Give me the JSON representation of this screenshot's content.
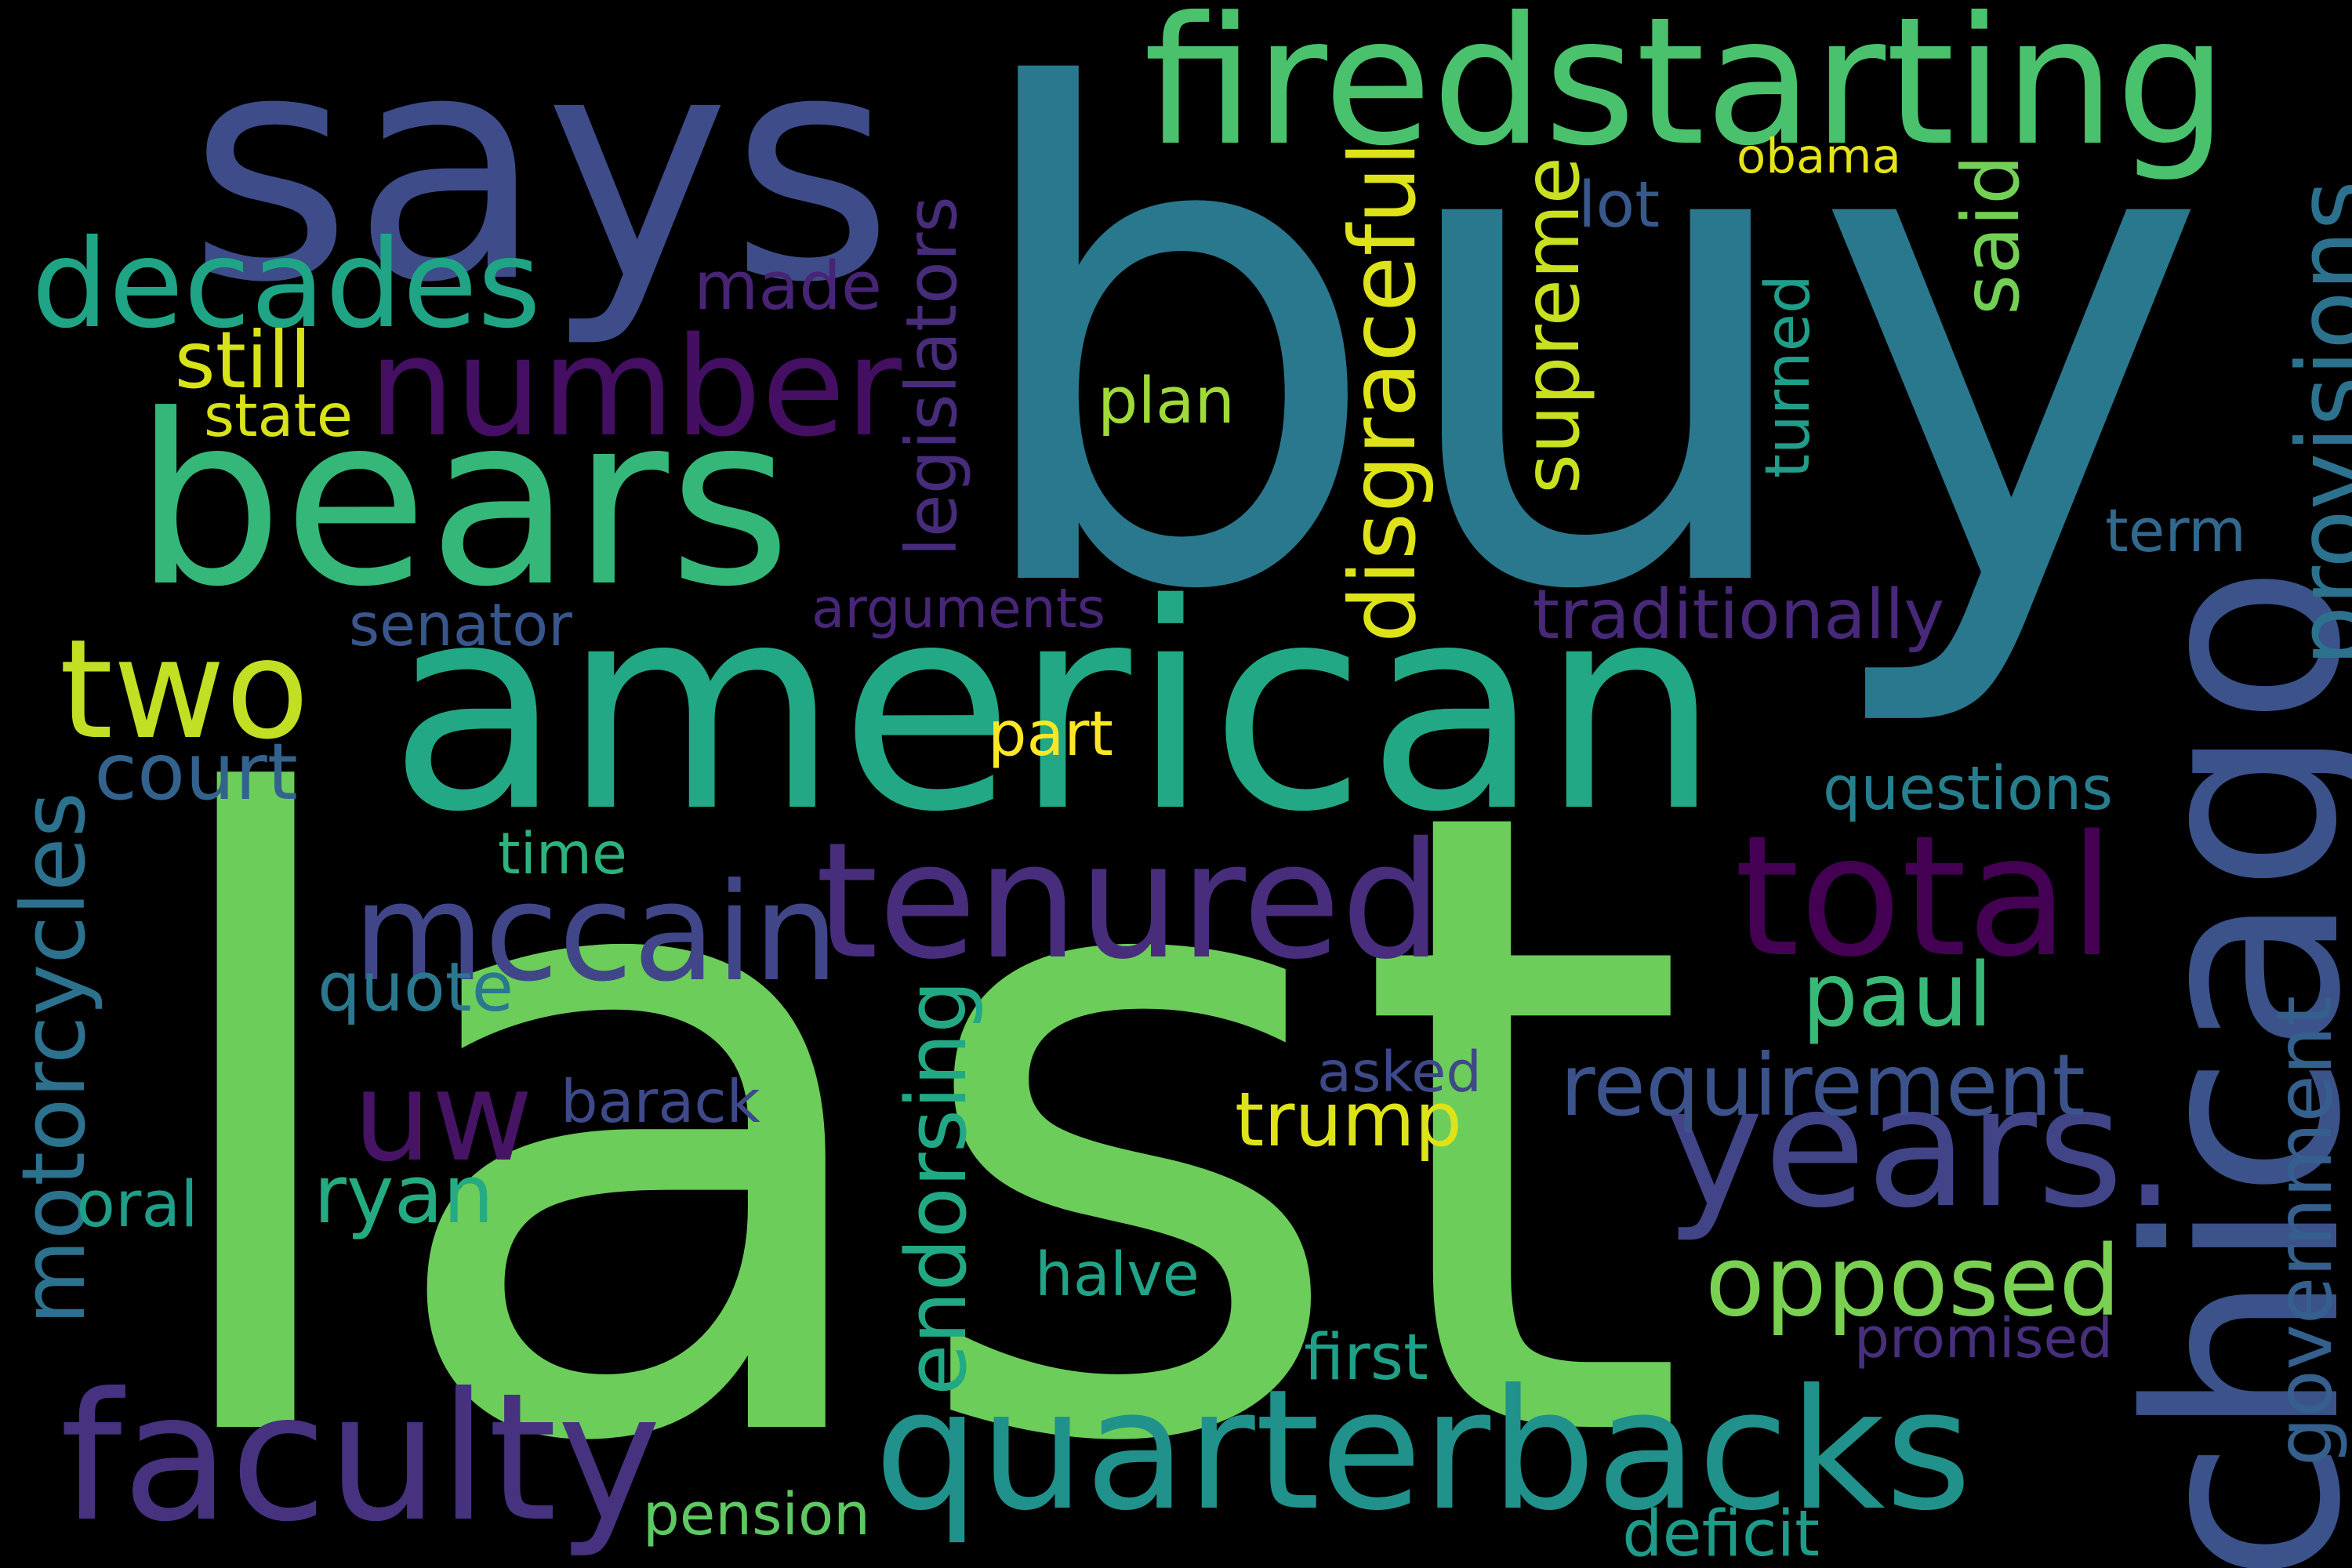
{
  "words": [
    {
      "id": "buy",
      "text": "buy",
      "color": "#2a788e"
    },
    {
      "id": "last",
      "text": "last",
      "color": "#6ccd5a"
    },
    {
      "id": "american",
      "text": "american",
      "color": "#22a884"
    },
    {
      "id": "says",
      "text": "says",
      "color": "#3e4c8a"
    },
    {
      "id": "firedstarting",
      "text": "firedstarting",
      "color": "#4ac16d"
    },
    {
      "id": "chicago",
      "text": "chicago",
      "color": "#3b528b"
    },
    {
      "id": "bears",
      "text": "bears",
      "color": "#35b779"
    },
    {
      "id": "quarterbacks",
      "text": "quarterbacks",
      "color": "#21918c"
    },
    {
      "id": "faculty",
      "text": "faculty",
      "color": "#46327e"
    },
    {
      "id": "number",
      "text": "number",
      "color": "#440f62"
    },
    {
      "id": "tenured",
      "text": "tenured",
      "color": "#472d7b"
    },
    {
      "id": "total",
      "text": "total",
      "color": "#440154"
    },
    {
      "id": "years",
      "text": "years.",
      "color": "#414487"
    },
    {
      "id": "decades",
      "text": "decades",
      "color": "#20a486"
    },
    {
      "id": "mccain",
      "text": "mccain",
      "color": "#404688"
    },
    {
      "id": "two",
      "text": "two",
      "color": "#c2df23"
    },
    {
      "id": "uw",
      "text": "uw",
      "color": "#471365"
    },
    {
      "id": "opposed",
      "text": "opposed",
      "color": "#7ad151"
    },
    {
      "id": "requirement",
      "text": "requirement",
      "color": "#3b528b"
    },
    {
      "id": "provisions",
      "text": "provisions",
      "color": "#2c728e"
    },
    {
      "id": "disgraceful",
      "text": "disgraceful",
      "color": "#dde318"
    },
    {
      "id": "supreme",
      "text": "supreme",
      "color": "#c8e020"
    },
    {
      "id": "endorsing",
      "text": "endorsing",
      "color": "#22a884"
    },
    {
      "id": "government",
      "text": "government",
      "color": "#355f8d"
    },
    {
      "id": "motorcycles",
      "text": "motorcycles",
      "color": "#2c728e"
    },
    {
      "id": "paul",
      "text": "paul",
      "color": "#38b977"
    },
    {
      "id": "quote",
      "text": "quote",
      "color": "#2a788e"
    },
    {
      "id": "ryan",
      "text": "ryan",
      "color": "#25ab82"
    },
    {
      "id": "trump",
      "text": "trump",
      "color": "#dde318"
    },
    {
      "id": "court",
      "text": "court",
      "color": "#33638d"
    },
    {
      "id": "still",
      "text": "still",
      "color": "#d8e219"
    },
    {
      "id": "made",
      "text": "made",
      "color": "#482475"
    },
    {
      "id": "said",
      "text": "said",
      "color": "#73d055"
    },
    {
      "id": "legislators",
      "text": "legislators",
      "color": "#472c7a"
    },
    {
      "id": "turned",
      "text": "turned",
      "color": "#1f9e89"
    },
    {
      "id": "arguments",
      "text": "arguments",
      "color": "#482677"
    },
    {
      "id": "traditionally",
      "text": "traditionally",
      "color": "#482878"
    },
    {
      "id": "senator",
      "text": "senator",
      "color": "#39568c"
    },
    {
      "id": "plan",
      "text": "plan",
      "color": "#a0da39"
    },
    {
      "id": "lot",
      "text": "lot",
      "color": "#38588c"
    },
    {
      "id": "obama",
      "text": "obama",
      "color": "#e5e419"
    },
    {
      "id": "state",
      "text": "state",
      "color": "#d8e219"
    },
    {
      "id": "term",
      "text": "term",
      "color": "#31688e"
    },
    {
      "id": "questions",
      "text": "questions",
      "color": "#277f8e"
    },
    {
      "id": "part",
      "text": "part",
      "color": "#fde725"
    },
    {
      "id": "time",
      "text": "time",
      "color": "#2db27d"
    },
    {
      "id": "asked",
      "text": "asked",
      "color": "#3e4989"
    },
    {
      "id": "barack",
      "text": "barack",
      "color": "#3e4989"
    },
    {
      "id": "oral",
      "text": "oral",
      "color": "#1f9e89"
    },
    {
      "id": "halve",
      "text": "halve",
      "color": "#20a386"
    },
    {
      "id": "first",
      "text": "first",
      "color": "#1fa088"
    },
    {
      "id": "promised",
      "text": "promised",
      "color": "#472f7d"
    },
    {
      "id": "pension",
      "text": "pension",
      "color": "#5ec962"
    },
    {
      "id": "deficit",
      "text": "deficit",
      "color": "#1e9c89"
    }
  ]
}
